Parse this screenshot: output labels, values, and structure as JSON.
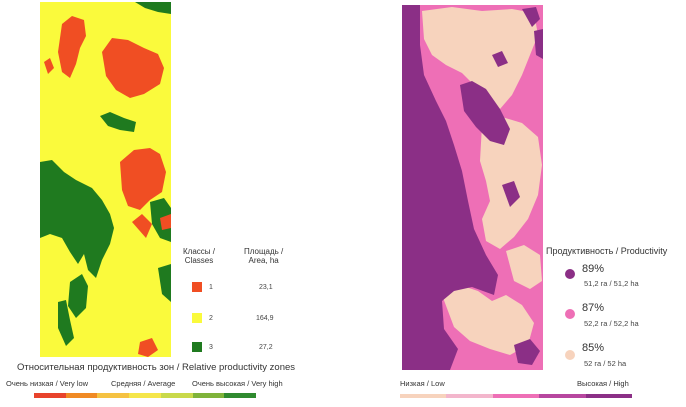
{
  "left_panel": {
    "legend": {
      "col_classes": "Классы /\nClasses",
      "col_area": "Площадь /\nArea, ha",
      "rows": [
        {
          "class": "1",
          "area": "23,1",
          "color": "#f04e23"
        },
        {
          "class": "2",
          "area": "164,9",
          "color": "#fafa3c"
        },
        {
          "class": "3",
          "area": "27,2",
          "color": "#1f7a1f"
        }
      ]
    },
    "title": "Относительная продуктивность зон  / Relative productivity zones",
    "scale_labels": {
      "low": "Очень низкая / Very low",
      "mid": "Средняя / Average",
      "high": "Очень высокая / Very high"
    },
    "scale_colors": [
      "#e8432c",
      "#f08a24",
      "#f5c242",
      "#f5e64a",
      "#c9d94a",
      "#7fb33a",
      "#2f8a2f"
    ]
  },
  "right_panel": {
    "legend": {
      "title": "Продуктивность / Productivity",
      "items": [
        {
          "percent": "89%",
          "area": "51,2 га / 51,2 ha",
          "color": "#8b2f86"
        },
        {
          "percent": "87%",
          "area": "52,2 га / 52,2 ha",
          "color": "#ee6fb6"
        },
        {
          "percent": "85%",
          "area": "52 га / 52 ha",
          "color": "#f7d3bd"
        }
      ]
    },
    "scale_labels": {
      "low": "Низкая / Low",
      "high": "Высокая / High"
    },
    "scale_colors": [
      "#f7d3bd",
      "#f3b6cc",
      "#ee6fb6",
      "#b7479f",
      "#8b2f86"
    ]
  }
}
